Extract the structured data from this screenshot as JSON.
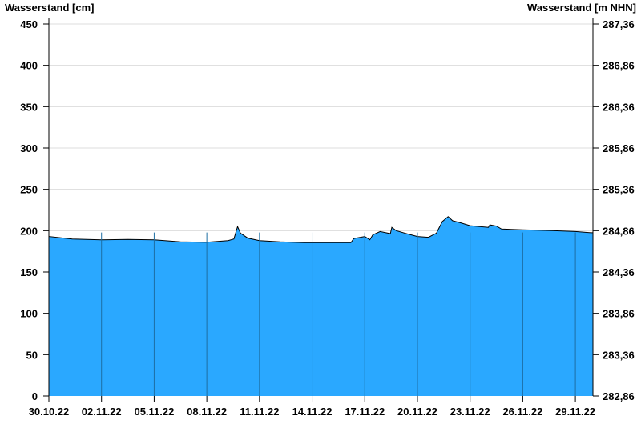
{
  "chart_data": {
    "type": "area",
    "ylabel_left": "Wasserstand [cm]",
    "ylabel_right": "Wasserstand [m NHN]",
    "ylim": [
      0,
      450
    ],
    "yticks_left": [
      "0",
      "50",
      "100",
      "150",
      "200",
      "250",
      "300",
      "350",
      "400",
      "450"
    ],
    "yticks_right": [
      "282,86",
      "283,36",
      "283,86",
      "284,36",
      "284,86",
      "285,36",
      "285,86",
      "286,36",
      "286,86",
      "287,36"
    ],
    "xlim": [
      "30.10.22 00:00",
      "30.11.22 00:00"
    ],
    "xticks": [
      "30.10.22",
      "02.11.22",
      "05.11.22",
      "08.11.22",
      "11.11.22",
      "14.11.22",
      "17.11.22",
      "20.11.22",
      "23.11.22",
      "26.11.22",
      "29.11.22"
    ],
    "grid": true,
    "fill_color": "#2aa8ff",
    "x": [
      "30.10.22 00:00",
      "31.10.22 08:00",
      "02.11.22 00:00",
      "03.11.22 12:00",
      "05.11.22 00:00",
      "06.11.22 12:00",
      "08.11.22 00:00",
      "09.11.22 05:00",
      "09.11.22 13:00",
      "09.11.22 18:00",
      "09.11.22 22:00",
      "10.11.22 08:00",
      "11.11.22 00:00",
      "12.11.22 04:00",
      "13.11.22 13:00",
      "15.11.22 09:00",
      "16.11.22 05:00",
      "16.11.22 09:00",
      "17.11.22 00:00",
      "17.11.22 07:00",
      "17.11.22 11:00",
      "17.11.22 21:00",
      "18.11.22 11:00",
      "18.11.22 13:00",
      "18.11.22 19:00",
      "19.11.22 11:00",
      "20.11.22 00:00",
      "20.11.22 15:00",
      "21.11.22 02:00",
      "21.11.22 10:00",
      "21.11.22 18:00",
      "22.11.22 00:00",
      "22.11.22 11:00",
      "23.11.22 00:00",
      "24.11.22 01:00",
      "24.11.22 03:00",
      "24.11.22 12:00",
      "24.11.22 19:00",
      "26.11.22 00:00",
      "27.11.22 16:00",
      "29.11.22 00:00",
      "29.11.22 21:00"
    ],
    "values": [
      193,
      190,
      189,
      189.5,
      189,
      186.5,
      186,
      188,
      190,
      205,
      197,
      191,
      188,
      186.5,
      185.5,
      185.5,
      185.5,
      190.5,
      193,
      189,
      195,
      199,
      196.5,
      204,
      200,
      196,
      193,
      192,
      197,
      211,
      217,
      212,
      209.5,
      206,
      204,
      207,
      205.5,
      202,
      201,
      200,
      199,
      197.5
    ]
  }
}
